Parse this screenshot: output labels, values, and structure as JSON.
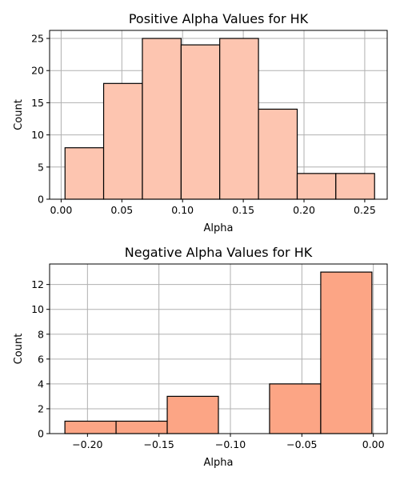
{
  "chart_data": [
    {
      "type": "bar",
      "title": "Positive Alpha Values for HK",
      "xlabel": "Alpha",
      "ylabel": "Count",
      "xlim": [
        -0.0095,
        0.2685
      ],
      "ylim": [
        0,
        26.25
      ],
      "grid": true,
      "bar_color": "#fdc5b0",
      "edge_color": "#000000",
      "xticks": [
        "0.00",
        "0.05",
        "0.10",
        "0.15",
        "0.20",
        "0.25"
      ],
      "yticks": [
        "0",
        "5",
        "10",
        "15",
        "20",
        "25"
      ],
      "bins": [
        {
          "x0": 0.0032,
          "x1": 0.035,
          "count": 8
        },
        {
          "x0": 0.035,
          "x1": 0.0669,
          "count": 18
        },
        {
          "x0": 0.0669,
          "x1": 0.0988,
          "count": 25
        },
        {
          "x0": 0.0988,
          "x1": 0.1306,
          "count": 24
        },
        {
          "x0": 0.1306,
          "x1": 0.1625,
          "count": 25
        },
        {
          "x0": 0.1625,
          "x1": 0.1944,
          "count": 14
        },
        {
          "x0": 0.1944,
          "x1": 0.2262,
          "count": 4
        },
        {
          "x0": 0.2262,
          "x1": 0.2581,
          "count": 4
        }
      ]
    },
    {
      "type": "bar",
      "title": "Negative Alpha Values for HK",
      "xlabel": "Alpha",
      "ylabel": "Count",
      "xlim": [
        -0.2265,
        0.0097
      ],
      "ylim": [
        0,
        13.65
      ],
      "grid": true,
      "bar_color": "#fca585",
      "edge_color": "#000000",
      "xticks": [
        "−0.20",
        "−0.15",
        "−0.10",
        "−0.05",
        "0.00"
      ],
      "yticks": [
        "0",
        "2",
        "4",
        "6",
        "8",
        "10",
        "12"
      ],
      "bins": [
        {
          "x0": -0.2158,
          "x1": -0.18,
          "count": 1
        },
        {
          "x0": -0.18,
          "x1": -0.1442,
          "count": 1
        },
        {
          "x0": -0.1442,
          "x1": -0.1084,
          "count": 3
        },
        {
          "x0": -0.1084,
          "x1": -0.0726,
          "count": 0
        },
        {
          "x0": -0.0726,
          "x1": -0.0368,
          "count": 4
        },
        {
          "x0": -0.0368,
          "x1": -0.001,
          "count": 13
        }
      ]
    }
  ]
}
